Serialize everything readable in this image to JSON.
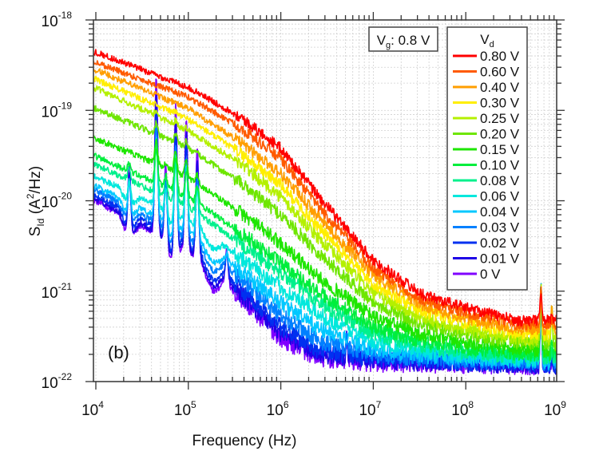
{
  "chart_data": {
    "type": "line",
    "title": "",
    "panel_label": "(b)",
    "xlabel": "Frequency (Hz)",
    "ylabel": "S_Id (A²/Hz)",
    "ylabel_parts": {
      "base": "S",
      "sub": "Id",
      "unit_open": " (A",
      "sup": "2",
      "unit_close": "/Hz)"
    },
    "xscale": "log",
    "yscale": "log",
    "xlim": [
      9000,
      1000000000
    ],
    "ylim": [
      1e-22,
      1e-18
    ],
    "x_ticks": [
      {
        "value": 10000,
        "base": "10",
        "exp": "4"
      },
      {
        "value": 100000,
        "base": "10",
        "exp": "5"
      },
      {
        "value": 1000000,
        "base": "10",
        "exp": "6"
      },
      {
        "value": 10000000,
        "base": "10",
        "exp": "7"
      },
      {
        "value": 100000000,
        "base": "10",
        "exp": "8"
      },
      {
        "value": 1000000000,
        "base": "10",
        "exp": "9"
      }
    ],
    "y_ticks": [
      {
        "value": 1e-18,
        "base": "10",
        "exp": "-18"
      },
      {
        "value": 1e-19,
        "base": "10",
        "exp": "-19"
      },
      {
        "value": 1e-20,
        "base": "10",
        "exp": "-20"
      },
      {
        "value": 1e-21,
        "base": "10",
        "exp": "-21"
      },
      {
        "value": 1e-22,
        "base": "10",
        "exp": "-22"
      }
    ],
    "grid": true,
    "annotation": {
      "text_base": "V",
      "text_sub": "g",
      "text_rest": ": 0.8 V",
      "placement": "top-right"
    },
    "legend": {
      "title_base": "V",
      "title_sub": "d",
      "placement": "top-right"
    },
    "series": [
      {
        "name": "0.80 V",
        "color": "#ff0000",
        "points": [
          [
            10000.0,
            4.4e-19
          ],
          [
            100000.0,
            1.8e-19
          ],
          [
            360000.0,
            8.5e-20
          ],
          [
            1000000.0,
            3.8e-20
          ],
          [
            2600000.0,
            1.1e-20
          ],
          [
            10000000.0,
            2.2e-21
          ],
          [
            34000000.0,
            9.2e-22
          ],
          [
            100000000.0,
            6.6e-22
          ],
          [
            370000000.0,
            4.7e-22
          ],
          [
            1000000000.0,
            4.9e-22
          ]
        ]
      },
      {
        "name": "0.60 V",
        "color": "#ff5a00",
        "points": [
          [
            10000.0,
            3.4e-19
          ],
          [
            100000.0,
            1.4e-19
          ],
          [
            360000.0,
            6.5e-20
          ],
          [
            1000000.0,
            2.9e-20
          ],
          [
            2600000.0,
            8.5e-21
          ],
          [
            10000000.0,
            1.8e-21
          ],
          [
            34000000.0,
            8e-22
          ],
          [
            100000000.0,
            5.8e-22
          ],
          [
            370000000.0,
            4.3e-22
          ],
          [
            1000000000.0,
            4.3e-22
          ]
        ]
      },
      {
        "name": "0.40 V",
        "color": "#ff9e00",
        "points": [
          [
            10000.0,
            2.8e-19
          ],
          [
            100000.0,
            1.05e-19
          ],
          [
            360000.0,
            4.5e-20
          ],
          [
            1000000.0,
            2e-20
          ],
          [
            2600000.0,
            6.5e-21
          ],
          [
            10000000.0,
            1.5e-21
          ],
          [
            34000000.0,
            7e-22
          ],
          [
            100000000.0,
            5e-22
          ],
          [
            370000000.0,
            3.8e-22
          ],
          [
            1000000000.0,
            3.8e-22
          ]
        ]
      },
      {
        "name": "0.30 V",
        "color": "#ffee00",
        "points": [
          [
            10000.0,
            2.2e-19
          ],
          [
            100000.0,
            8e-20
          ],
          [
            360000.0,
            3.4e-20
          ],
          [
            1000000.0,
            1.5e-20
          ],
          [
            2600000.0,
            5e-21
          ],
          [
            10000000.0,
            1.2e-21
          ],
          [
            34000000.0,
            6e-22
          ],
          [
            100000000.0,
            4.4e-22
          ],
          [
            370000000.0,
            3.4e-22
          ],
          [
            1000000000.0,
            3.3e-22
          ]
        ]
      },
      {
        "name": "0.25 V",
        "color": "#b4f000",
        "points": [
          [
            10000.0,
            1.75e-19
          ],
          [
            100000.0,
            6e-20
          ],
          [
            360000.0,
            2.6e-20
          ],
          [
            1000000.0,
            1.1e-20
          ],
          [
            2600000.0,
            3.8e-21
          ],
          [
            10000000.0,
            9.5e-22
          ],
          [
            34000000.0,
            5e-22
          ],
          [
            100000000.0,
            3.8e-22
          ],
          [
            370000000.0,
            3e-22
          ],
          [
            1000000000.0,
            2.9e-22
          ]
        ]
      },
      {
        "name": "0.20 V",
        "color": "#6ee600",
        "points": [
          [
            10000.0,
            1.05e-19
          ],
          [
            100000.0,
            3.8e-20
          ],
          [
            360000.0,
            1.6e-20
          ],
          [
            1000000.0,
            7e-21
          ],
          [
            2600000.0,
            2.6e-21
          ],
          [
            10000000.0,
            7.5e-22
          ],
          [
            34000000.0,
            4.2e-22
          ],
          [
            100000000.0,
            3.3e-22
          ],
          [
            370000000.0,
            2.7e-22
          ],
          [
            1000000000.0,
            2.6e-22
          ]
        ]
      },
      {
        "name": "0.15 V",
        "color": "#1ee600",
        "points": [
          [
            10000.0,
            4.9e-20
          ],
          [
            100000.0,
            1.8e-20
          ],
          [
            360000.0,
            7.5e-21
          ],
          [
            1000000.0,
            3.4e-21
          ],
          [
            2600000.0,
            1.4e-21
          ],
          [
            10000000.0,
            5.2e-22
          ],
          [
            34000000.0,
            3.3e-22
          ],
          [
            100000000.0,
            2.7e-22
          ],
          [
            370000000.0,
            2.3e-22
          ],
          [
            1000000000.0,
            2.2e-22
          ]
        ]
      },
      {
        "name": "0.10 V",
        "color": "#00ee3c",
        "points": [
          [
            10000.0,
            3.1e-20
          ],
          [
            100000.0,
            1.1e-20
          ],
          [
            360000.0,
            4.5e-21
          ],
          [
            1000000.0,
            2.1e-21
          ],
          [
            2600000.0,
            9.5e-22
          ],
          [
            10000000.0,
            4e-22
          ],
          [
            34000000.0,
            2.8e-22
          ],
          [
            100000000.0,
            2.35e-22
          ],
          [
            370000000.0,
            2.05e-22
          ],
          [
            1000000000.0,
            2e-22
          ]
        ]
      },
      {
        "name": "0.08 V",
        "color": "#00f08c",
        "points": [
          [
            10000.0,
            2.5e-20
          ],
          [
            100000.0,
            8.5e-21
          ],
          [
            360000.0,
            3.4e-21
          ],
          [
            1000000.0,
            1.6e-21
          ],
          [
            2600000.0,
            7.5e-22
          ],
          [
            10000000.0,
            3.4e-22
          ],
          [
            34000000.0,
            2.5e-22
          ],
          [
            100000000.0,
            2.1e-22
          ],
          [
            370000000.0,
            1.9e-22
          ],
          [
            1000000000.0,
            1.85e-22
          ]
        ]
      },
      {
        "name": "0.06 V",
        "color": "#00e8dc",
        "points": [
          [
            10000.0,
            1.85e-20
          ],
          [
            100000.0,
            6e-21
          ],
          [
            360000.0,
            2.4e-21
          ],
          [
            1000000.0,
            1.1e-21
          ],
          [
            2600000.0,
            5.5e-22
          ],
          [
            10000000.0,
            2.8e-22
          ],
          [
            34000000.0,
            2.2e-22
          ],
          [
            100000000.0,
            1.95e-22
          ],
          [
            370000000.0,
            1.8e-22
          ],
          [
            1000000000.0,
            1.75e-22
          ]
        ]
      },
      {
        "name": "0.04 V",
        "color": "#00c8ff",
        "points": [
          [
            10000.0,
            1.45e-20
          ],
          [
            100000.0,
            4.5e-21
          ],
          [
            360000.0,
            1.7e-21
          ],
          [
            1000000.0,
            7.5e-22
          ],
          [
            2600000.0,
            3.8e-22
          ],
          [
            10000000.0,
            2.3e-22
          ],
          [
            34000000.0,
            1.95e-22
          ],
          [
            100000000.0,
            1.8e-22
          ],
          [
            370000000.0,
            1.7e-22
          ],
          [
            1000000000.0,
            1.65e-22
          ]
        ]
      },
      {
        "name": "0.03 V",
        "color": "#0080ff",
        "points": [
          [
            10000.0,
            1.3e-20
          ],
          [
            100000.0,
            3.8e-21
          ],
          [
            360000.0,
            1.4e-21
          ],
          [
            1000000.0,
            5.5e-22
          ],
          [
            2600000.0,
            2.8e-22
          ],
          [
            10000000.0,
            2e-22
          ],
          [
            34000000.0,
            1.8e-22
          ],
          [
            100000000.0,
            1.7e-22
          ],
          [
            370000000.0,
            1.62e-22
          ],
          [
            1000000000.0,
            1.6e-22
          ]
        ]
      },
      {
        "name": "0.02 V",
        "color": "#0030f0",
        "points": [
          [
            10000.0,
            1.15e-20
          ],
          [
            100000.0,
            3.2e-21
          ],
          [
            360000.0,
            1.1e-21
          ],
          [
            1000000.0,
            4e-22
          ],
          [
            2600000.0,
            2.2e-22
          ],
          [
            10000000.0,
            1.8e-22
          ],
          [
            34000000.0,
            1.7e-22
          ],
          [
            100000000.0,
            1.62e-22
          ],
          [
            370000000.0,
            1.57e-22
          ],
          [
            1000000000.0,
            1.55e-22
          ]
        ]
      },
      {
        "name": "0.01 V",
        "color": "#1e00e6",
        "points": [
          [
            10000.0,
            1.05e-20
          ],
          [
            100000.0,
            2.9e-21
          ],
          [
            360000.0,
            9.5e-22
          ],
          [
            1000000.0,
            3.4e-22
          ],
          [
            2600000.0,
            2e-22
          ],
          [
            10000000.0,
            1.7e-22
          ],
          [
            34000000.0,
            1.62e-22
          ],
          [
            100000000.0,
            1.58e-22
          ],
          [
            370000000.0,
            1.53e-22
          ],
          [
            1000000000.0,
            1.5e-22
          ]
        ]
      },
      {
        "name": "0 V",
        "color": "#8000ff",
        "points": [
          [
            10000.0,
            1e-20
          ],
          [
            100000.0,
            2.7e-21
          ],
          [
            360000.0,
            8.5e-22
          ],
          [
            1000000.0,
            3e-22
          ],
          [
            2600000.0,
            1.8e-22
          ],
          [
            10000000.0,
            1.6e-22
          ],
          [
            34000000.0,
            1.55e-22
          ],
          [
            100000000.0,
            1.55e-22
          ],
          [
            370000000.0,
            1.5e-22
          ],
          [
            1000000000.0,
            1.45e-22
          ]
        ]
      }
    ],
    "peaks": [
      {
        "freq": 23000,
        "level": 3.8e-20
      },
      {
        "freq": 45000,
        "level": 2.3e-19
      },
      {
        "freq": 57000,
        "level": 3.5e-20
      },
      {
        "freq": 73000,
        "level": 1.6e-19
      },
      {
        "freq": 95000,
        "level": 8.5e-20
      },
      {
        "freq": 125000,
        "level": 3.8e-20
      },
      {
        "freq": 260000,
        "level": 3e-21
      },
      {
        "freq": 1700000,
        "level": 3e-22
      },
      {
        "freq": 5200000,
        "level": 3.2e-22
      },
      {
        "freq": 650000000,
        "level": 1.05e-21
      },
      {
        "freq": 850000000,
        "level": 6.5e-22
      }
    ]
  }
}
